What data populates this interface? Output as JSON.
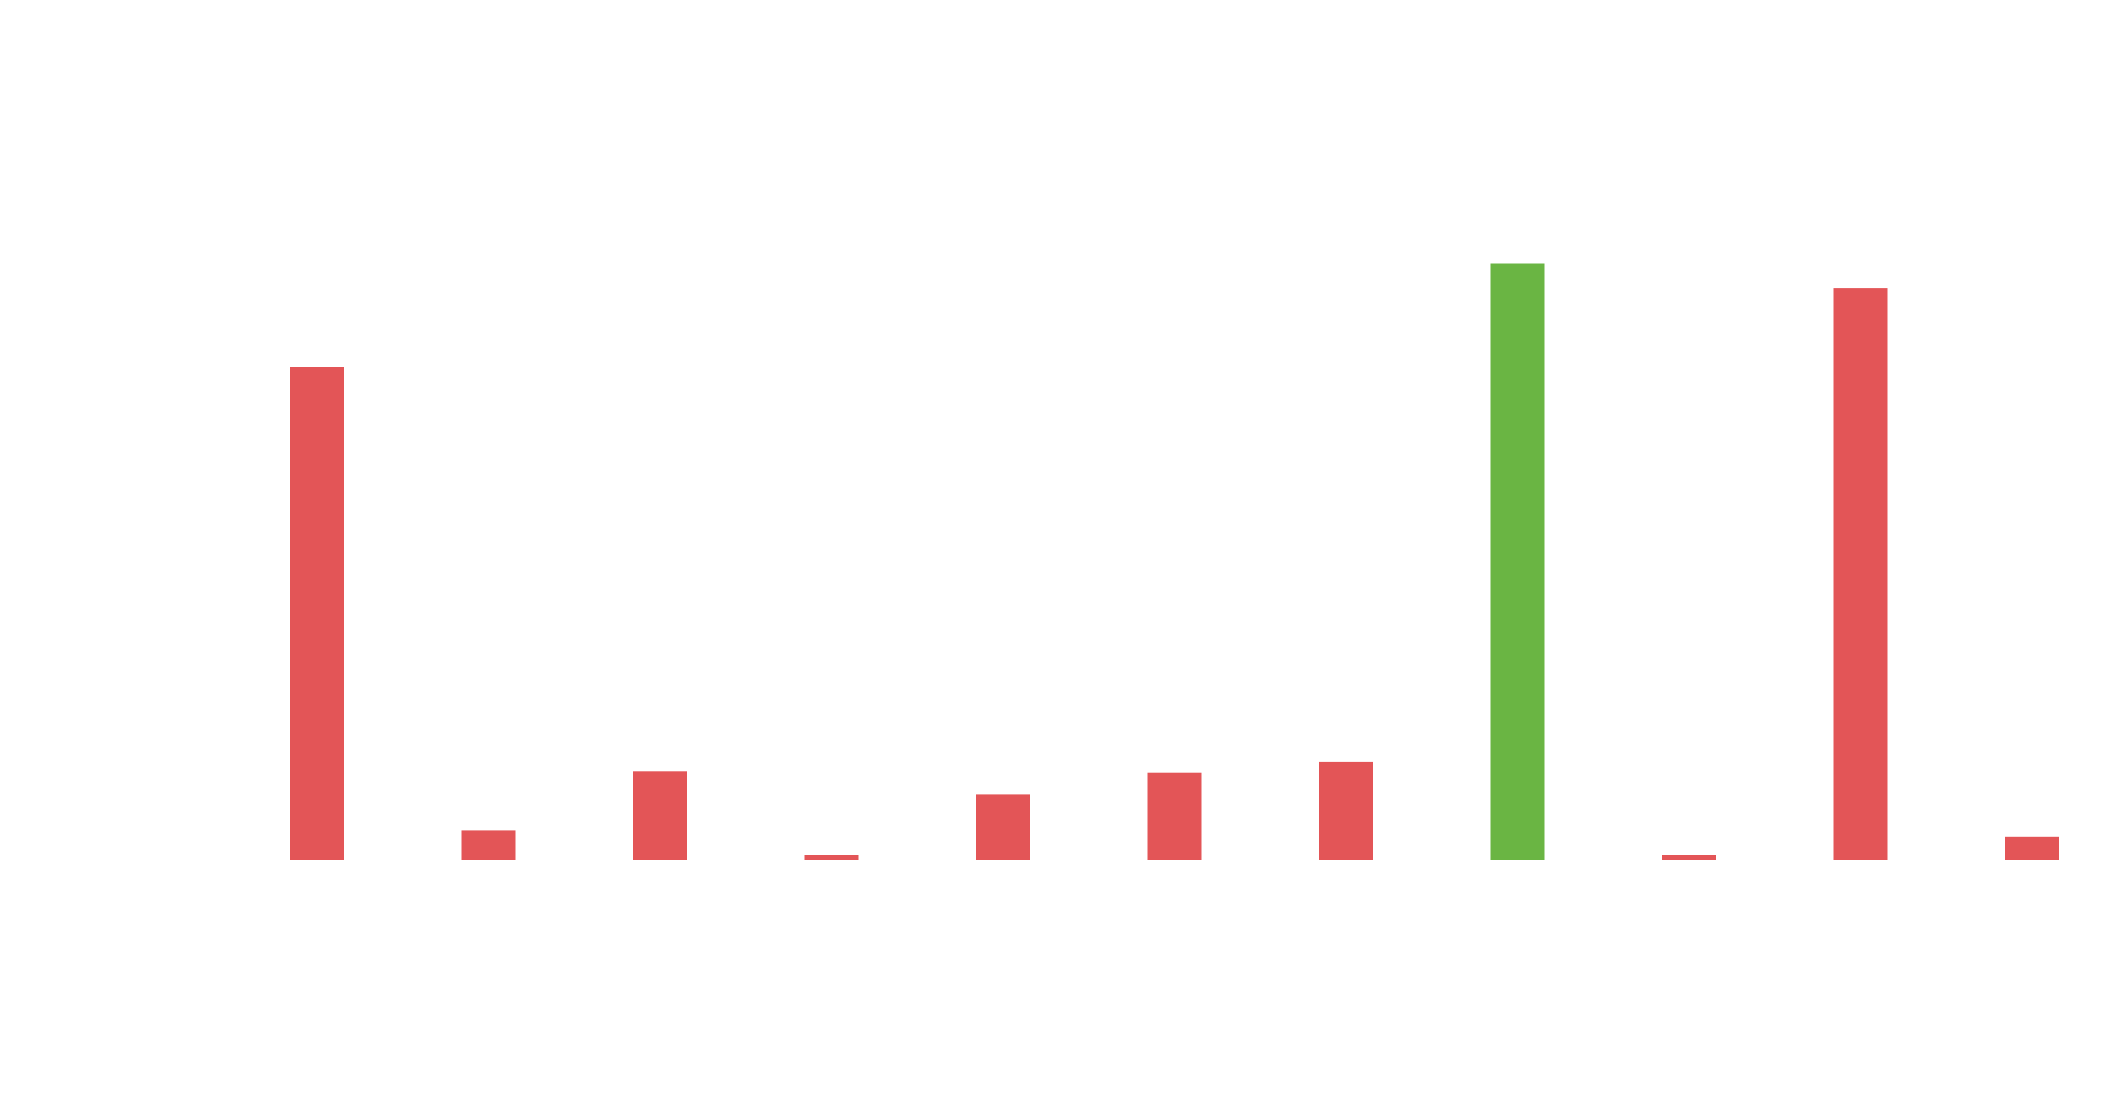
{
  "chart_data": {
    "type": "bar",
    "title": "",
    "xlabel": "",
    "ylabel": "",
    "categories": [
      "",
      "",
      "",
      "",
      "",
      "",
      "",
      "",
      "",
      "",
      ""
    ],
    "values": [
      100,
      6,
      18,
      1,
      13.3,
      17.7,
      19.9,
      121,
      1,
      116,
      4.7
    ],
    "highlight_index": 7,
    "ylim": [
      0,
      150
    ],
    "grid": false,
    "legend": "none",
    "colors": {
      "default_bar": "#E35557",
      "highlight_bar": "#6AB543",
      "background": "#FFFFFF"
    }
  }
}
